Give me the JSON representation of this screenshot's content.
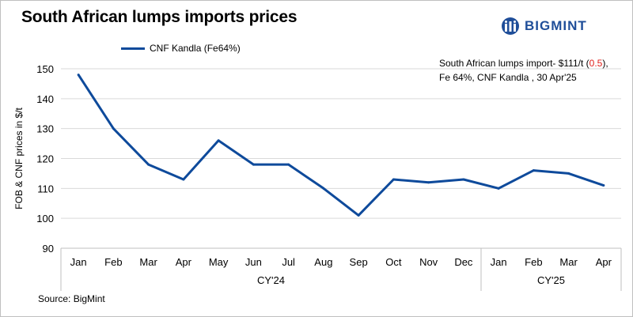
{
  "title": "South African lumps imports prices",
  "brand": {
    "name": "BIGMINT",
    "logo_icon": "bigmint-logo-icon",
    "color": "#1f4e99"
  },
  "annotation": {
    "line1_prefix": "South African lumps import- $111/t (",
    "change": "0.5",
    "line1_suffix": "),",
    "line2": "Fe 64%, CNF Kandla , 30 Apr'25"
  },
  "source": "Source: BigMint",
  "chart_data": {
    "type": "line",
    "ylabel": "FOB & CNF prices in $/t",
    "xlabel": "",
    "ylim": [
      90,
      150
    ],
    "yticks": [
      90,
      100,
      110,
      120,
      130,
      140,
      150
    ],
    "grid": true,
    "legend_position": "top-left",
    "categories": [
      "Jan",
      "Feb",
      "Mar",
      "Apr",
      "May",
      "Jun",
      "Jul",
      "Aug",
      "Sep",
      "Oct",
      "Nov",
      "Dec",
      "Jan",
      "Feb",
      "Mar",
      "Apr"
    ],
    "groups": [
      {
        "label": "CY'24",
        "count": 12
      },
      {
        "label": "CY'25",
        "count": 4
      }
    ],
    "series": [
      {
        "name": "CNF Kandla (Fe64%)",
        "color": "#0e4a9b",
        "values": [
          148,
          130,
          118,
          113,
          126,
          118,
          118,
          110,
          101,
          113,
          112,
          113,
          110,
          116,
          115,
          111
        ]
      }
    ]
  }
}
